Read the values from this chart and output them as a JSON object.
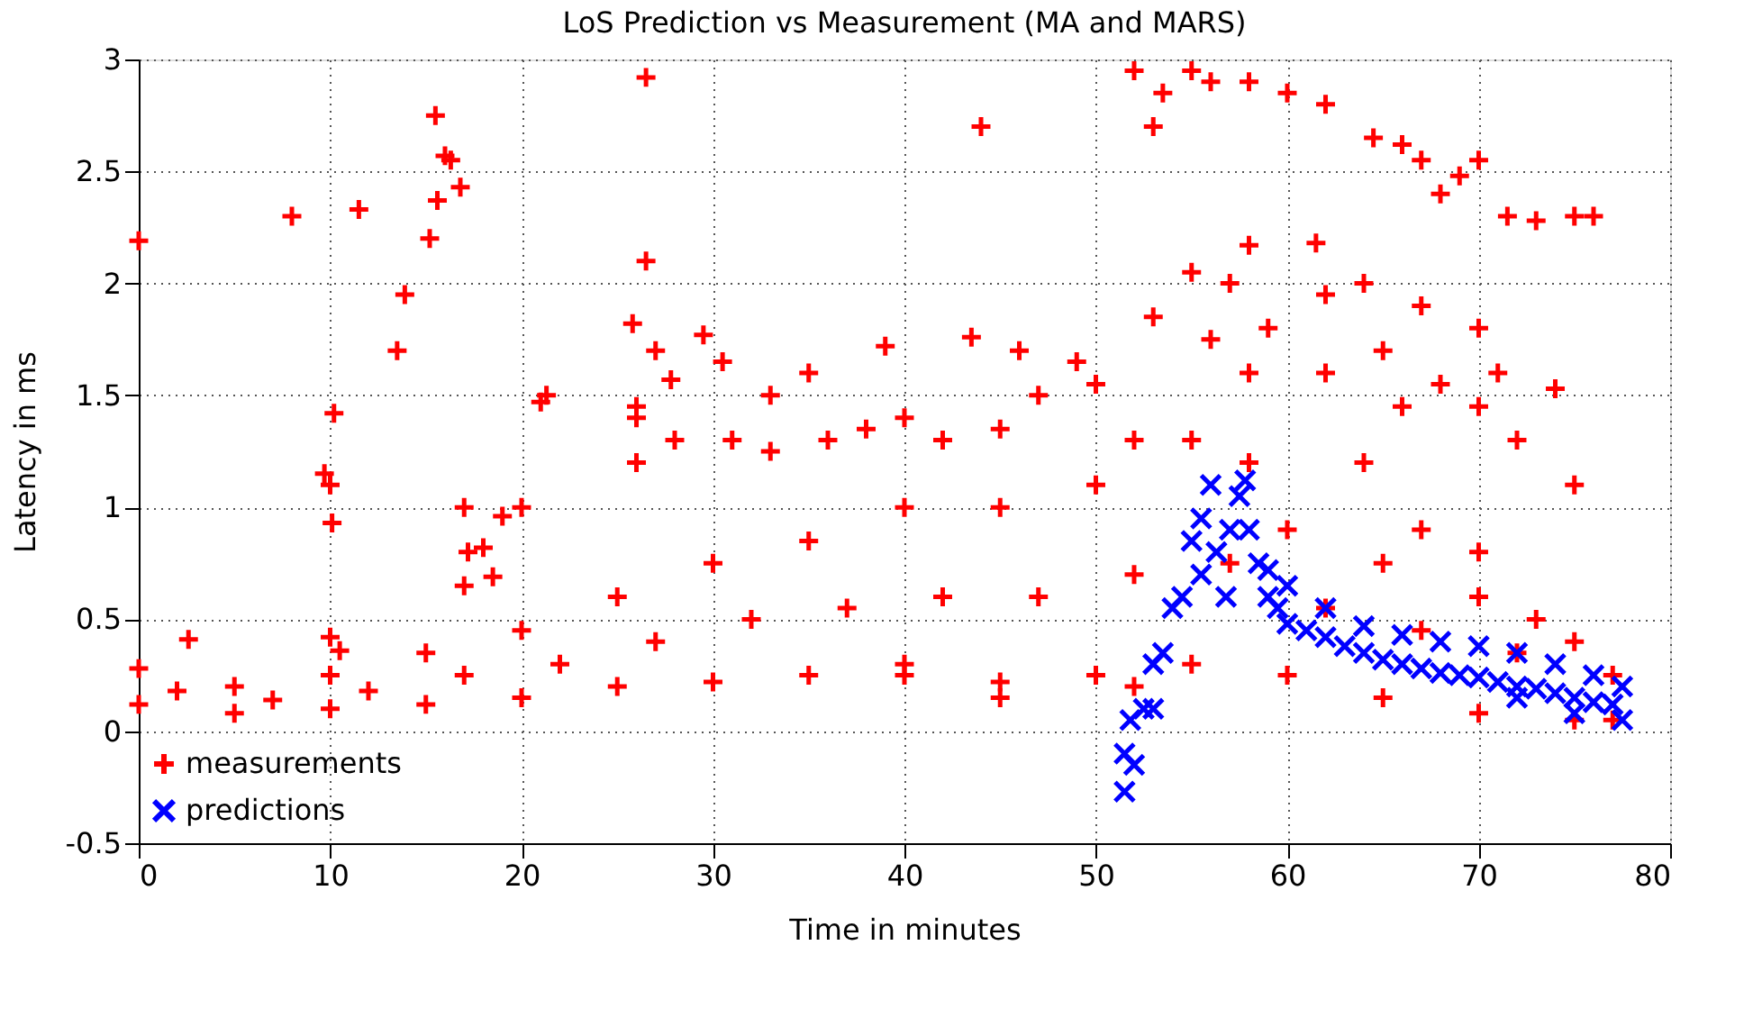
{
  "chart_data": {
    "type": "scatter",
    "title": "LoS Prediction vs Measurement (MA and MARS)",
    "xlabel": "Time in minutes",
    "ylabel": "Latency in ms",
    "xlim": [
      0,
      80
    ],
    "xticks": [
      0,
      10,
      20,
      30,
      40,
      50,
      60,
      70,
      80
    ],
    "ylim": [
      -0.5,
      3
    ],
    "yticks": [
      -0.5,
      0,
      0.5,
      1,
      1.5,
      2,
      2.5,
      3
    ],
    "grid": true,
    "legend": "bottom left",
    "series": [
      {
        "name": "measurements",
        "color": "#ff0000",
        "marker": "cross",
        "x": [
          0,
          8,
          11.5,
          13.5,
          13.9,
          15.2,
          15.5,
          15.6,
          16,
          16.3,
          16.8,
          10.2,
          9.7,
          10,
          10.1,
          17,
          19,
          20,
          17.2,
          18,
          17,
          18.5,
          10,
          10.5,
          2.6,
          26.5,
          26.5,
          25.8,
          27,
          27.8,
          29.5,
          30.5,
          21,
          21.3,
          44,
          26,
          26,
          33,
          35,
          39,
          43.5,
          46,
          49,
          53,
          52,
          53.5,
          55,
          56,
          58,
          60,
          62,
          64.5,
          66,
          67,
          68,
          69,
          70,
          71.5,
          73,
          75,
          76,
          58,
          61.5,
          64,
          55,
          57,
          62,
          67,
          70,
          53,
          56,
          59,
          62,
          65,
          68,
          71,
          74,
          58,
          66,
          70,
          72,
          75,
          64,
          67,
          70,
          73,
          0,
          5,
          10,
          15,
          20,
          25,
          30,
          35,
          40,
          45,
          50,
          55,
          60,
          65,
          70,
          75,
          77,
          0,
          5,
          10,
          15,
          20,
          25,
          30,
          35,
          40,
          45,
          50,
          55,
          58,
          60,
          65,
          70,
          75,
          77,
          2,
          7,
          12,
          17,
          22,
          27,
          32,
          37,
          42,
          47,
          52,
          57,
          62,
          67,
          72,
          26,
          28,
          31,
          33,
          36,
          38,
          40,
          42,
          45,
          47,
          50,
          52,
          40,
          45,
          52
        ],
        "values": [
          2.19,
          2.3,
          2.33,
          1.7,
          1.95,
          2.2,
          2.75,
          2.37,
          2.57,
          2.55,
          2.43,
          1.42,
          1.15,
          1.1,
          0.93,
          1.0,
          0.96,
          1.0,
          0.8,
          0.82,
          0.65,
          0.69,
          0.42,
          0.36,
          0.41,
          2.92,
          2.1,
          1.82,
          1.7,
          1.57,
          1.77,
          1.65,
          1.47,
          1.5,
          2.7,
          1.2,
          1.45,
          1.5,
          1.6,
          1.72,
          1.76,
          1.7,
          1.65,
          2.7,
          2.95,
          2.85,
          2.95,
          2.9,
          2.9,
          2.85,
          2.8,
          2.65,
          2.62,
          2.55,
          2.4,
          2.48,
          2.55,
          2.3,
          2.28,
          2.3,
          2.3,
          2.17,
          2.18,
          2.0,
          2.05,
          2.0,
          1.95,
          1.9,
          1.8,
          1.85,
          1.75,
          1.8,
          1.6,
          1.7,
          1.55,
          1.6,
          1.53,
          1.6,
          1.45,
          1.45,
          1.3,
          1.1,
          1.2,
          0.9,
          0.8,
          0.5,
          0.12,
          0.08,
          0.1,
          0.12,
          0.15,
          0.2,
          0.22,
          0.25,
          0.25,
          0.22,
          0.25,
          0.3,
          0.25,
          0.15,
          0.08,
          0.05,
          0.05,
          0.28,
          0.2,
          0.25,
          0.35,
          0.45,
          0.6,
          0.75,
          0.85,
          1.0,
          1.0,
          1.1,
          1.3,
          1.2,
          0.9,
          0.75,
          0.6,
          0.4,
          0.25,
          0.18,
          0.14,
          0.18,
          0.25,
          0.3,
          0.4,
          0.5,
          0.55,
          0.6,
          0.6,
          0.7,
          0.75,
          0.55,
          0.45,
          0.35,
          1.4,
          1.3,
          1.3,
          1.25,
          1.3,
          1.35,
          1.4,
          1.3,
          1.35,
          1.5,
          1.55,
          1.3,
          0.3,
          0.15,
          0.2
        ]
      },
      {
        "name": "predictions",
        "color": "#0000ff",
        "marker": "x",
        "x": [
          51.5,
          51.5,
          51.8,
          52,
          52.5,
          53,
          53,
          53.5,
          54,
          54.5,
          55,
          55.5,
          55.5,
          56,
          56.3,
          56.8,
          57,
          57.5,
          57.8,
          58,
          58.5,
          59,
          59.5,
          60,
          61,
          62,
          63,
          64,
          65,
          66,
          67,
          68,
          69,
          70,
          71,
          72,
          73,
          74,
          75,
          76,
          77,
          77.5,
          77.5,
          76,
          74,
          72,
          70,
          68,
          66,
          64,
          62,
          60,
          59,
          72,
          75
        ],
        "values": [
          -0.27,
          -0.1,
          0.05,
          -0.15,
          0.1,
          0.3,
          0.1,
          0.35,
          0.55,
          0.6,
          0.85,
          0.95,
          0.7,
          1.1,
          0.8,
          0.6,
          0.9,
          1.05,
          1.12,
          0.9,
          0.75,
          0.6,
          0.55,
          0.48,
          0.45,
          0.42,
          0.38,
          0.35,
          0.32,
          0.3,
          0.28,
          0.26,
          0.25,
          0.24,
          0.22,
          0.2,
          0.19,
          0.17,
          0.15,
          0.13,
          0.12,
          0.05,
          0.2,
          0.25,
          0.3,
          0.35,
          0.38,
          0.4,
          0.43,
          0.47,
          0.55,
          0.65,
          0.72,
          0.15,
          0.08
        ]
      }
    ]
  }
}
